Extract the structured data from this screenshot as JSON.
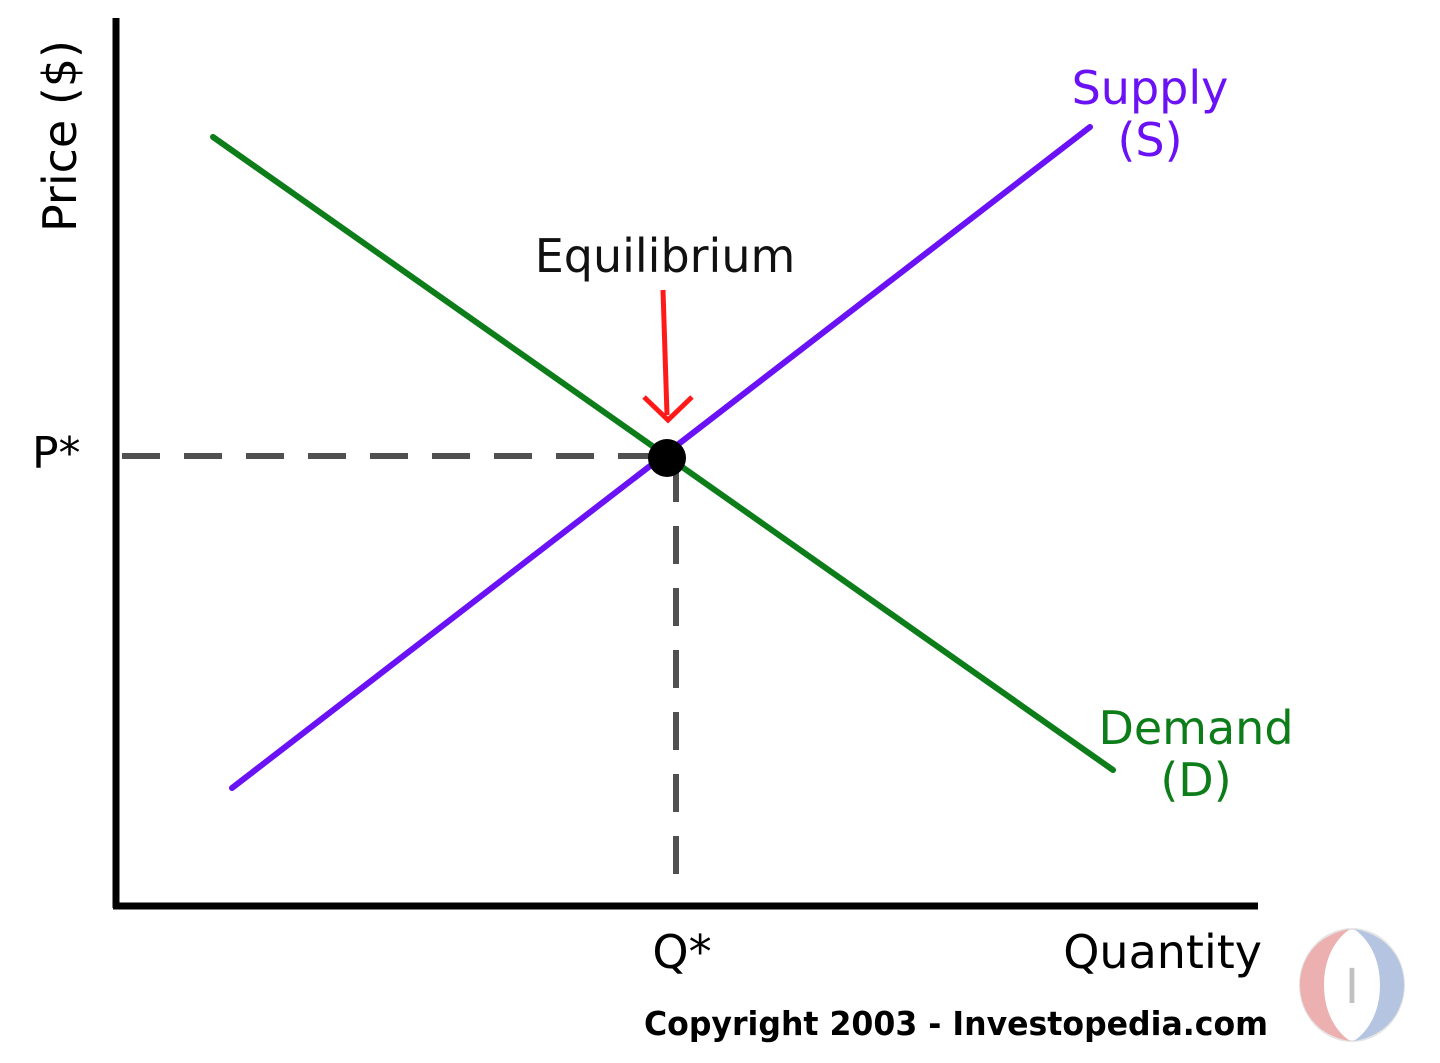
{
  "axes": {
    "y_label": "Price ($)",
    "x_label": "Quantity"
  },
  "equilibrium": {
    "label": "Equilibrium",
    "price_label": "P*",
    "quantity_label": "Q*"
  },
  "supply": {
    "label_line1": "Supply",
    "label_line2": "(S)"
  },
  "demand": {
    "label_line1": "Demand",
    "label_line2": "(D)"
  },
  "copyright": "Copyright 2003 - Investopedia.com",
  "logo": {
    "text": "I"
  },
  "colors": {
    "supply": "#6a11f5",
    "demand": "#0d7d1a",
    "arrow": "#ff1a1a",
    "axis": "#000000",
    "guide": "#505050",
    "logo_left": "#e07070",
    "logo_right": "#7a95c8"
  }
}
